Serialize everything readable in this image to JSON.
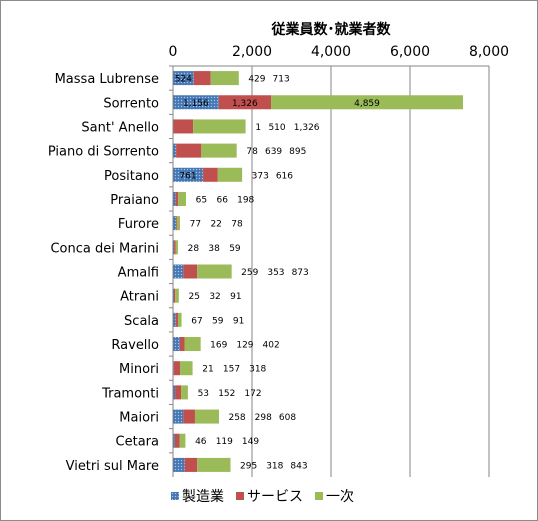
{
  "chart_data": {
    "type": "bar",
    "orientation": "horizontal",
    "stacked": true,
    "title": "従業員数･就業者数",
    "xlabel": "",
    "ylabel": "",
    "xlim": [
      0,
      8000
    ],
    "xticks": [
      0,
      2000,
      4000,
      6000,
      8000
    ],
    "xtick_labels": [
      "0",
      "2,000",
      "4,000",
      "6,000",
      "8,000"
    ],
    "grid": true,
    "legend_position": "bottom",
    "categories": [
      "Massa Lubrense",
      "Sorrento",
      "Sant' Anello",
      "Piano di Sorrento",
      "Positano",
      "Praiano",
      "Furore",
      "Conca dei Marini",
      "Amalfi",
      "Atrani",
      "Scala",
      "Ravello",
      "Minori",
      "Tramonti",
      "Maiori",
      "Cetara",
      "Vietri sul Mare"
    ],
    "series": [
      {
        "name": "製造業",
        "color": "#4f81bd",
        "pattern": "dotted",
        "values": [
          524,
          1156,
          1,
          78,
          761,
          65,
          77,
          28,
          259,
          25,
          67,
          169,
          21,
          53,
          258,
          46,
          295
        ]
      },
      {
        "name": "サービス",
        "color": "#c0504d",
        "values": [
          429,
          1326,
          510,
          639,
          373,
          66,
          22,
          38,
          353,
          32,
          59,
          129,
          157,
          152,
          298,
          119,
          318
        ]
      },
      {
        "name": "一次",
        "color": "#9bbb59",
        "values": [
          713,
          4859,
          1326,
          895,
          616,
          198,
          78,
          59,
          873,
          91,
          91,
          402,
          318,
          172,
          608,
          149,
          843
        ]
      }
    ],
    "value_labels": [
      [
        "524",
        "429",
        "713"
      ],
      [
        "1,156",
        "1,326",
        "4,859"
      ],
      [
        "1",
        "510",
        "1,326"
      ],
      [
        "78",
        "639",
        "895"
      ],
      [
        "761",
        "373",
        "616"
      ],
      [
        "65",
        "66",
        "198"
      ],
      [
        "77",
        "22",
        "78"
      ],
      [
        "28",
        "38",
        "59"
      ],
      [
        "259",
        "353",
        "873"
      ],
      [
        "25",
        "32",
        "91"
      ],
      [
        "67",
        "59",
        "91"
      ],
      [
        "169",
        "129",
        "402"
      ],
      [
        "21",
        "157",
        "318"
      ],
      [
        "53",
        "152",
        "172"
      ],
      [
        "258",
        "298",
        "608"
      ],
      [
        "46",
        "119",
        "149"
      ],
      [
        "295",
        "318",
        "843"
      ]
    ]
  }
}
